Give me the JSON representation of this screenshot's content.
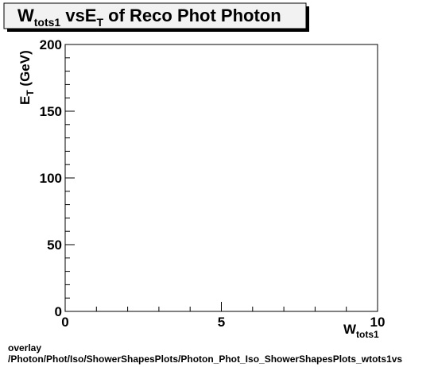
{
  "title": {
    "main": "W",
    "sub": "tots1",
    "mid": " vsE",
    "sub2": "T",
    "rest": " of Reco Phot Photon"
  },
  "footer": {
    "line1": "overlay",
    "line2": "/Photon/Phot/Iso/ShowerShapesPlots/Photon_Phot_Iso_ShowerShapesPlots_wtots1vs"
  },
  "chart_data": {
    "type": "scatter",
    "title": "W_tots1 vsE_T of Reco Phot Photon",
    "xlabel": "W_tots1",
    "ylabel": "E_T (GeV)",
    "xlim": [
      0,
      10
    ],
    "ylim": [
      0,
      200
    ],
    "x_ticks": [
      "0",
      "5",
      "10"
    ],
    "y_ticks": [
      "0",
      "50",
      "100",
      "150",
      "200"
    ],
    "grid": false,
    "series": []
  },
  "colors": {
    "frame": "#000000",
    "title_bg": "#f2f2f2",
    "shadow": "#000000"
  }
}
